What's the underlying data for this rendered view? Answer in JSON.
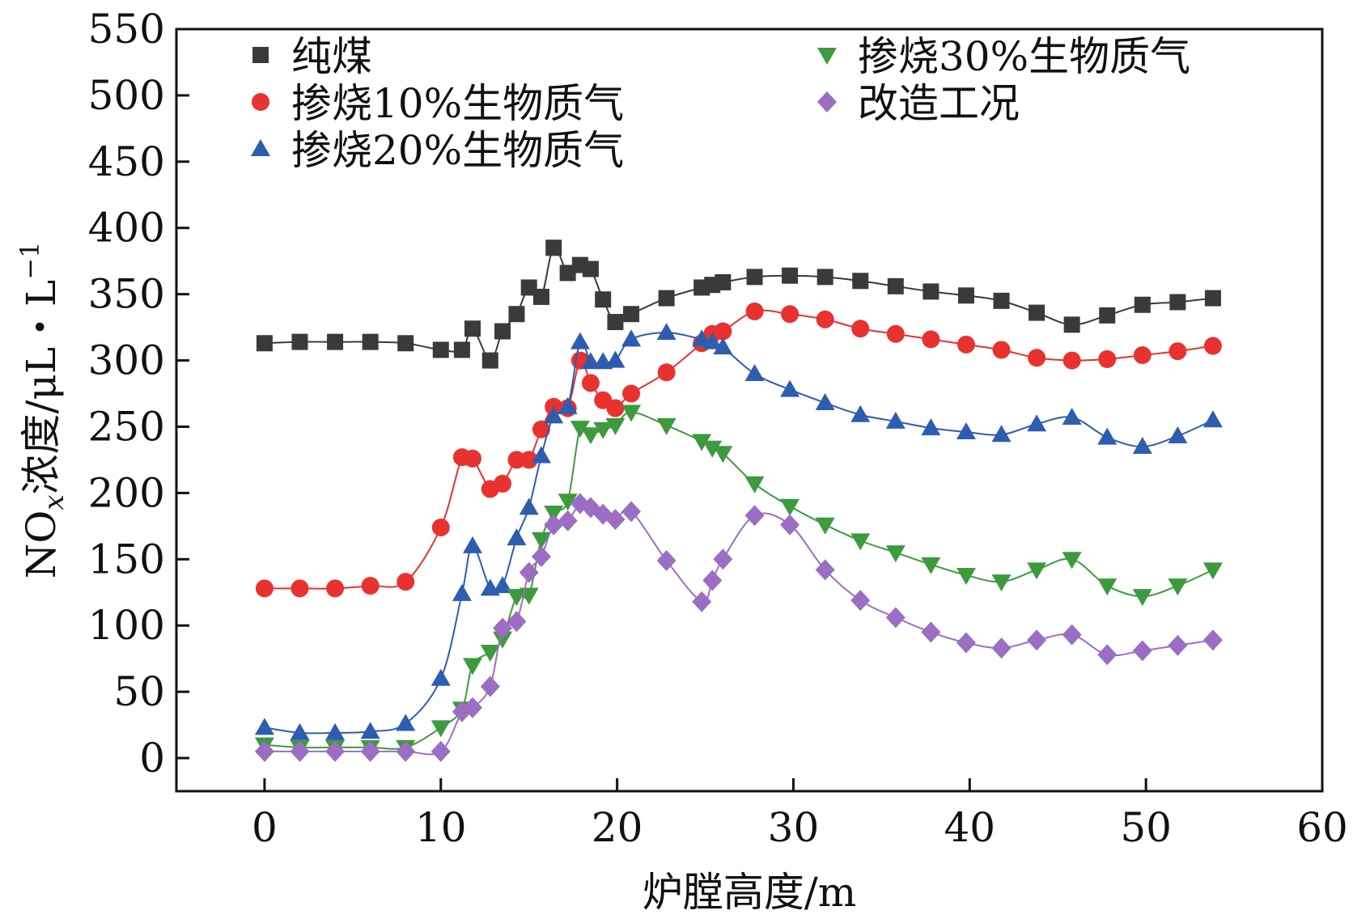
{
  "chart_data": {
    "type": "line",
    "title": "",
    "xlabel": "炉膛高度/m",
    "ylabel": {
      "prefix": "NO",
      "sub": "x",
      "mid": "浓度/μL・L",
      "sup": "−1"
    },
    "xlim": [
      -5,
      60
    ],
    "ylim": [
      -25,
      550
    ],
    "xticks": [
      0,
      10,
      20,
      30,
      40,
      50,
      60
    ],
    "yticks": [
      0,
      50,
      100,
      150,
      200,
      250,
      300,
      350,
      400,
      450,
      500,
      550
    ],
    "legend_position": "top",
    "series": [
      {
        "name": "纯煤",
        "color": "#3a3a3a",
        "marker": "square",
        "x": [
          0,
          2,
          4,
          6,
          8,
          10,
          11.2,
          11.8,
          12.8,
          13.5,
          14.3,
          15,
          15.7,
          16.4,
          17.2,
          17.9,
          18.5,
          19.2,
          19.9,
          20.8,
          22.8,
          24.8,
          25.4,
          26,
          27.8,
          29.8,
          31.8,
          33.8,
          35.8,
          37.8,
          39.8,
          41.8,
          43.8,
          45.8,
          47.8,
          49.8,
          51.8,
          53.8
        ],
        "values": [
          313,
          314,
          314,
          314,
          313,
          308,
          308,
          324,
          300,
          322,
          335,
          355,
          348,
          385,
          366,
          372,
          369,
          346,
          329,
          335,
          347,
          355,
          357,
          359,
          363,
          364,
          363,
          360,
          356,
          352,
          349,
          345,
          336,
          327,
          334,
          342,
          344,
          347
        ]
      },
      {
        "name": "掺烧10%生物质气",
        "color": "#e8322f",
        "marker": "circle",
        "x": [
          0,
          2,
          4,
          6,
          8,
          10,
          11.2,
          11.8,
          12.8,
          13.5,
          14.3,
          15,
          15.7,
          16.4,
          17.2,
          17.9,
          18.5,
          19.2,
          19.9,
          20.8,
          22.8,
          24.8,
          25.4,
          26,
          27.8,
          29.8,
          31.8,
          33.8,
          35.8,
          37.8,
          39.8,
          41.8,
          43.8,
          45.8,
          47.8,
          49.8,
          51.8,
          53.8
        ],
        "values": [
          128,
          128,
          128,
          130,
          133,
          174,
          227,
          226,
          203,
          207,
          225,
          225,
          248,
          265,
          264,
          300,
          283,
          270,
          264,
          275,
          291,
          313,
          320,
          322,
          337,
          335,
          331,
          324,
          320,
          316,
          312,
          308,
          302,
          300,
          301,
          304,
          307,
          311
        ]
      },
      {
        "name": "掺烧20%生物质气",
        "color": "#2e5db0",
        "marker": "triangle-up",
        "x": [
          0,
          2,
          4,
          6,
          8,
          10,
          11.2,
          11.8,
          12.8,
          13.5,
          14.3,
          15,
          15.7,
          16.4,
          17.2,
          17.9,
          18.5,
          19.2,
          19.9,
          20.8,
          22.8,
          24.8,
          25.4,
          26,
          27.8,
          29.8,
          31.8,
          33.8,
          35.8,
          37.8,
          39.8,
          41.8,
          43.8,
          45.8,
          47.8,
          49.8,
          51.8,
          53.8
        ],
        "values": [
          23,
          19,
          19,
          20,
          26,
          60,
          124,
          160,
          128,
          130,
          166,
          189,
          228,
          258,
          265,
          314,
          299,
          299,
          300,
          316,
          321,
          316,
          314,
          310,
          290,
          278,
          268,
          259,
          254,
          249,
          246,
          244,
          252,
          257,
          242,
          235,
          243,
          255
        ]
      },
      {
        "name": "掺烧30%生物质气",
        "color": "#3e9a3e",
        "marker": "triangle-down",
        "x": [
          0,
          2,
          4,
          6,
          8,
          10,
          11.2,
          11.8,
          12.8,
          13.5,
          14.3,
          15,
          15.7,
          16.4,
          17.2,
          17.9,
          18.5,
          19.2,
          19.9,
          20.8,
          22.8,
          24.8,
          25.4,
          26,
          27.8,
          29.8,
          31.8,
          33.8,
          35.8,
          37.8,
          39.8,
          41.8,
          43.8,
          45.8,
          47.8,
          49.8,
          51.8,
          53.8
        ],
        "values": [
          10,
          8,
          8,
          8,
          8,
          23,
          37,
          70,
          80,
          90,
          122,
          123,
          165,
          185,
          194,
          249,
          244,
          248,
          251,
          261,
          251,
          239,
          234,
          230,
          207,
          190,
          176,
          164,
          155,
          146,
          138,
          133,
          142,
          150,
          130,
          122,
          130,
          142
        ]
      },
      {
        "name": "改造工况",
        "color": "#9b6ec4",
        "marker": "diamond",
        "x": [
          0,
          2,
          4,
          6,
          8,
          10,
          11.2,
          11.8,
          12.8,
          13.5,
          14.3,
          15,
          15.7,
          16.4,
          17.2,
          17.9,
          18.5,
          19.2,
          19.9,
          20.8,
          22.8,
          24.8,
          25.4,
          26,
          27.8,
          29.8,
          31.8,
          33.8,
          35.8,
          37.8,
          39.8,
          41.8,
          43.8,
          45.8,
          47.8,
          49.8,
          51.8,
          53.8
        ],
        "values": [
          5,
          5,
          5,
          5,
          5,
          5,
          35,
          38,
          54,
          98,
          103,
          140,
          152,
          176,
          179,
          192,
          189,
          184,
          180,
          186,
          149,
          118,
          134,
          150,
          183,
          176,
          142,
          119,
          106,
          95,
          87,
          83,
          89,
          93,
          78,
          81,
          85,
          89
        ]
      }
    ]
  }
}
